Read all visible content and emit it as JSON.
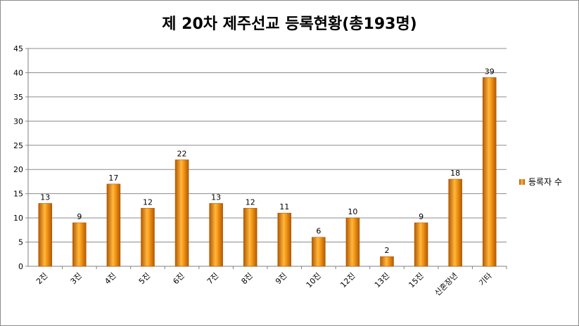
{
  "chart_data": {
    "type": "bar",
    "title": "제 20차 제주선교 등록현황(총193명)",
    "categories": [
      "2진",
      "3진",
      "4진",
      "5진",
      "6진",
      "7진",
      "8진",
      "9진",
      "10진",
      "12진",
      "13진",
      "15진",
      "신혼장년",
      "기타"
    ],
    "series": [
      {
        "name": "등록자 수",
        "values": [
          13,
          9,
          17,
          12,
          22,
          13,
          12,
          11,
          6,
          10,
          2,
          9,
          18,
          39
        ]
      }
    ],
    "ylim": [
      0,
      45
    ],
    "yticks": [
      0,
      5,
      10,
      15,
      20,
      25,
      30,
      35,
      40,
      45
    ],
    "grid": true,
    "legend": "right",
    "data_labels": true,
    "colors": {
      "bar_dark": "#b45a00",
      "bar_light": "#ffb840",
      "grid": "#8c8c8c"
    }
  }
}
